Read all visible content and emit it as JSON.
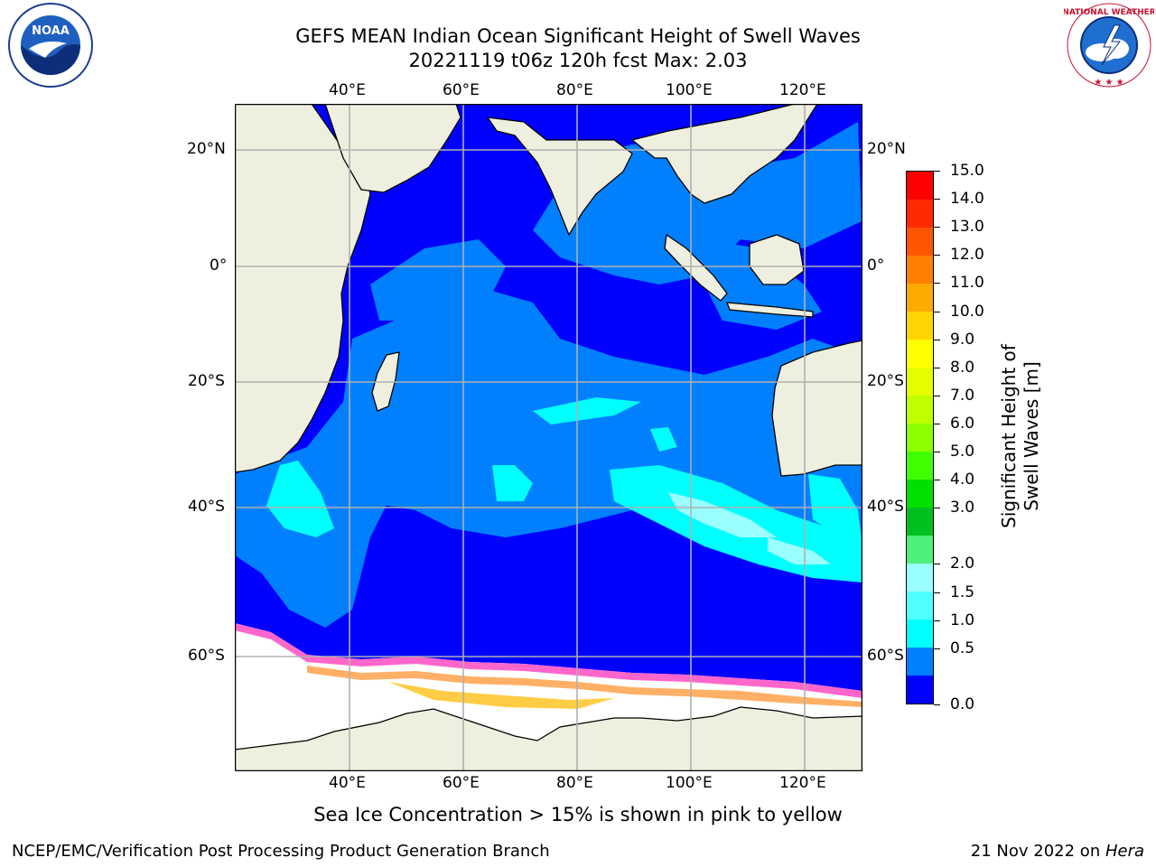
{
  "title": {
    "line1": "GEFS MEAN Indian Ocean Significant Height of Swell Waves",
    "line2": "20221119 t06z 120h fcst   Max: 2.03"
  },
  "logos": {
    "left": {
      "name": "noaa-logo",
      "text": "NOAA",
      "ring_text": "NATIONAL OCEANIC AND ATMOSPHERIC ADMINISTRATION · U.S. DEPARTMENT OF COMMERCE"
    },
    "right": {
      "name": "nws-logo",
      "ring_text": "NATIONAL WEATHER SERVICE"
    }
  },
  "map": {
    "lon_ticks": [
      {
        "lon": 40,
        "label": "40°E"
      },
      {
        "lon": 60,
        "label": "60°E"
      },
      {
        "lon": 80,
        "label": "80°E"
      },
      {
        "lon": 100,
        "label": "100°E"
      },
      {
        "lon": 120,
        "label": "120°E"
      }
    ],
    "lat_ticks_left": [
      {
        "lat": 20,
        "label": "20°N"
      },
      {
        "lat": 0,
        "label": "0°"
      },
      {
        "lat": -20,
        "label": "20°S"
      },
      {
        "lat": -40,
        "label": "40°S"
      },
      {
        "lat": -60,
        "label": "60°S"
      }
    ],
    "lat_ticks_right": [
      {
        "lat": 20,
        "label": "20°N"
      },
      {
        "lat": 0,
        "label": "0°"
      },
      {
        "lat": -20,
        "label": "20°S"
      },
      {
        "lat": -40,
        "label": "40°S"
      },
      {
        "lat": -60,
        "label": "60°S"
      }
    ],
    "land_color": "#efefdf",
    "ocean_base_color": "#0000ff",
    "ice_note": "Sea Ice Concentration > 15% is shown in pink to yellow"
  },
  "colorbar": {
    "title": "Significant Height of Swell Waves [m]",
    "labels": [
      "15.0",
      "14.0",
      "13.0",
      "12.0",
      "11.0",
      "10.0",
      "9.0",
      "8.0",
      "7.0",
      "6.0",
      "5.0",
      "4.0",
      "3.0",
      "2.0",
      "1.5",
      "1.0",
      "0.5",
      "0.0"
    ],
    "colors": [
      "#ff0000",
      "#ff2a00",
      "#ff5500",
      "#ff8000",
      "#ffaa00",
      "#ffd400",
      "#ffff00",
      "#e6ff00",
      "#bfff00",
      "#8cff00",
      "#40ff00",
      "#00e000",
      "#00c020",
      "#4df07a",
      "#9bffff",
      "#50ffff",
      "#00ffff",
      "#0080ff",
      "#0000ff"
    ]
  },
  "footer": {
    "left": "NCEP/EMC/Verification Post Processing Product Generation Branch",
    "right_date": "21 Nov 2022 on ",
    "right_machine": "Hera"
  }
}
